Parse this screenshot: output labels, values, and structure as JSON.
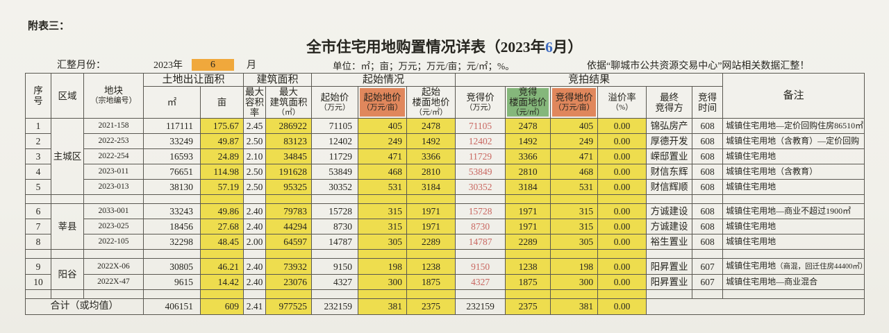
{
  "page": {
    "corner_label": "附表三：",
    "title_prefix": "全市住宅用地购置情况详表（2023年",
    "title_month": "6",
    "title_suffix": "月）"
  },
  "meta": {
    "month_label": "汇整月份：",
    "year": "2023年",
    "month": "6",
    "month_unit": "月",
    "units": "单位：㎡；亩；万元；万元/亩；元/㎡；%。",
    "source": "依据“聊城市公共资源交易中心”网站相关数据汇整！"
  },
  "colors": {
    "highlight_yellow": "#eedd4e",
    "header_salmon": "#e0875c",
    "header_green": "#85b77b",
    "month_orange": "#f0a83c",
    "win_price_red": "#c96761",
    "title_month_blue": "#3f6cbf"
  },
  "table": {
    "groups": {
      "land": "土地出让面积",
      "build": "建筑面积",
      "start": "起始情况",
      "result": "竞拍结果"
    },
    "headers": {
      "no": [
        "序",
        "号"
      ],
      "region": [
        "区域"
      ],
      "plot": [
        "地块",
        "（宗地编号）"
      ],
      "m2": [
        "㎡"
      ],
      "mu": [
        "亩"
      ],
      "far": [
        "最大",
        "容积",
        "率"
      ],
      "barea": [
        "最大",
        "建筑面积",
        "（㎡）"
      ],
      "sprice": [
        "起始价",
        "（万元）"
      ],
      "smu": [
        "起始地价",
        "（万元/亩）"
      ],
      "sfloor": [
        "起始",
        "楼面地价",
        "（元/㎡）"
      ],
      "wprice": [
        "竞得价",
        "（万元）"
      ],
      "wfloor": [
        "竞得",
        "楼面地价",
        "（元/㎡）"
      ],
      "wmu": [
        "竞得地价",
        "（万元/亩）"
      ],
      "premium": [
        "溢价率",
        "（%）"
      ],
      "winner": [
        "最终",
        "竞得方"
      ],
      "time": [
        "竞得",
        "时间"
      ],
      "remark": "备注"
    },
    "regions": [
      {
        "name": "主城区",
        "rows": [
          {
            "no": "1",
            "plot": "2021-158",
            "m2": "117111",
            "mu": "175.67",
            "far": "2.45",
            "barea": "286922",
            "sprice": "71105",
            "smu": "405",
            "sfloor": "2478",
            "wprice": "71105",
            "wfloor": "2478",
            "wmu": "405",
            "premium": "0.00",
            "winner": "锦弘房产",
            "time": "608",
            "remark": "城镇住宅用地—定价回购住房86510㎡"
          },
          {
            "no": "2",
            "plot": "2022-253",
            "m2": "33249",
            "mu": "49.87",
            "far": "2.50",
            "barea": "83123",
            "sprice": "12402",
            "smu": "249",
            "sfloor": "1492",
            "wprice": "12402",
            "wfloor": "1492",
            "wmu": "249",
            "premium": "0.00",
            "winner": "厚德开发",
            "time": "608",
            "remark": "城镇住宅用地（含教育）—定价回购"
          },
          {
            "no": "3",
            "plot": "2022-254",
            "m2": "16593",
            "mu": "24.89",
            "far": "2.10",
            "barea": "34845",
            "sprice": "11729",
            "smu": "471",
            "sfloor": "3366",
            "wprice": "11729",
            "wfloor": "3366",
            "wmu": "471",
            "premium": "0.00",
            "winner": "嵘邸置业",
            "time": "608",
            "remark": "城镇住宅用地"
          },
          {
            "no": "4",
            "plot": "2023-011",
            "m2": "76651",
            "mu": "114.98",
            "far": "2.50",
            "barea": "191628",
            "sprice": "53849",
            "smu": "468",
            "sfloor": "2810",
            "wprice": "53849",
            "wfloor": "2810",
            "wmu": "468",
            "premium": "0.00",
            "winner": "财信东辉",
            "time": "608",
            "remark": "城镇住宅用地（含教育）"
          },
          {
            "no": "5",
            "plot": "2023-013",
            "m2": "38130",
            "mu": "57.19",
            "far": "2.50",
            "barea": "95325",
            "sprice": "30352",
            "smu": "531",
            "sfloor": "3184",
            "wprice": "30352",
            "wfloor": "3184",
            "wmu": "531",
            "premium": "0.00",
            "winner": "财信辉顺",
            "time": "608",
            "remark": "城镇住宅用地"
          }
        ]
      },
      {
        "name": "莘县",
        "rows": [
          {
            "no": "6",
            "plot": "2033-001",
            "m2": "33243",
            "mu": "49.86",
            "far": "2.40",
            "barea": "79783",
            "sprice": "15728",
            "smu": "315",
            "sfloor": "1971",
            "wprice": "15728",
            "wfloor": "1971",
            "wmu": "315",
            "premium": "0.00",
            "winner": "方诚建设",
            "time": "608",
            "remark": "城镇住宅用地—商业不超过1900㎡"
          },
          {
            "no": "7",
            "plot": "2023-025",
            "m2": "18456",
            "mu": "27.68",
            "far": "2.40",
            "barea": "44294",
            "sprice": "8730",
            "smu": "315",
            "sfloor": "1971",
            "wprice": "8730",
            "wfloor": "1971",
            "wmu": "315",
            "premium": "0.00",
            "winner": "方诚建设",
            "time": "608",
            "remark": "城镇住宅用地"
          },
          {
            "no": "8",
            "plot": "2022-105",
            "m2": "32298",
            "mu": "48.45",
            "far": "2.00",
            "barea": "64597",
            "sprice": "14787",
            "smu": "305",
            "sfloor": "2289",
            "wprice": "14787",
            "wfloor": "2289",
            "wmu": "305",
            "premium": "0.00",
            "winner": "裕生置业",
            "time": "608",
            "remark": "城镇住宅用地"
          }
        ]
      },
      {
        "name": "阳谷",
        "rows": [
          {
            "no": "9",
            "plot": "2022X-06",
            "m2": "30805",
            "mu": "46.21",
            "far": "2.40",
            "barea": "73932",
            "sprice": "9150",
            "smu": "198",
            "sfloor": "1238",
            "wprice": "9150",
            "wfloor": "1238",
            "wmu": "198",
            "premium": "0.00",
            "winner": "阳昇置业",
            "time": "607",
            "remark": "城镇住宅用地",
            "remark_small": "（商混，回迁住房44400㎡）"
          },
          {
            "no": "10",
            "plot": "2022X-47",
            "m2": "9615",
            "mu": "14.42",
            "far": "2.40",
            "barea": "23076",
            "sprice": "4327",
            "smu": "300",
            "sfloor": "1875",
            "wprice": "4327",
            "wfloor": "1875",
            "wmu": "300",
            "premium": "0.00",
            "winner": "阳昇置业",
            "time": "607",
            "remark": "城镇住宅用地—商业混合"
          }
        ]
      }
    ],
    "total": {
      "label": "合计（或均值）",
      "m2": "406151",
      "mu": "609",
      "far": "2.41",
      "barea": "977525",
      "sprice": "232159",
      "smu": "381",
      "sfloor": "2375",
      "wprice": "232159",
      "wfloor": "2375",
      "wmu": "381",
      "premium": "0.00"
    }
  }
}
